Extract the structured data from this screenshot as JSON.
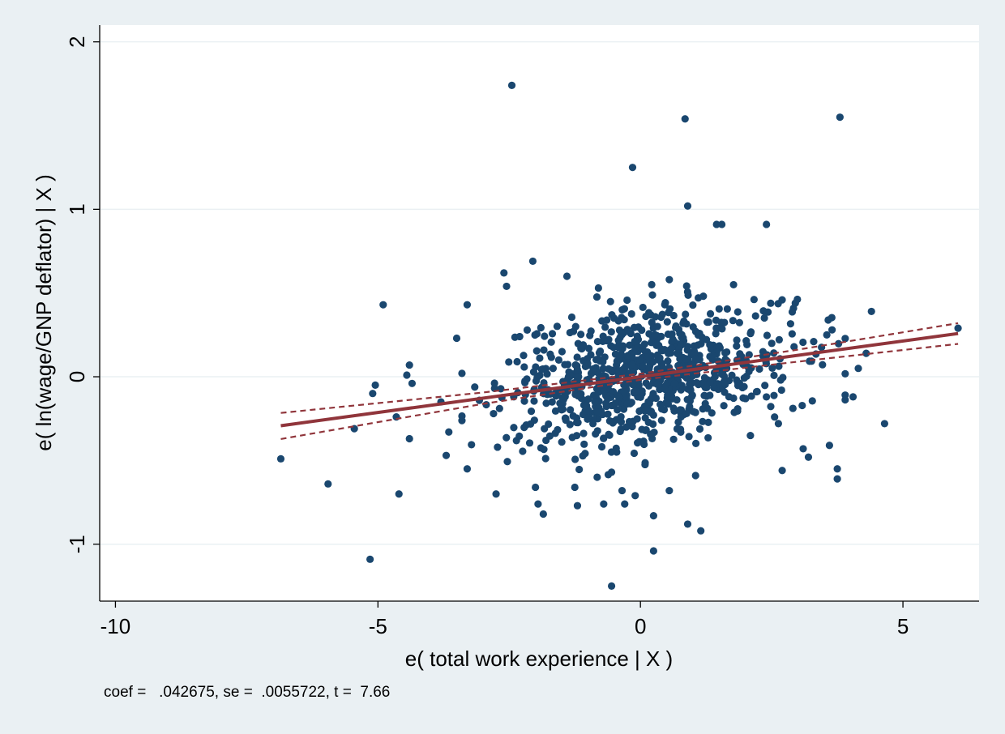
{
  "chart_data": {
    "type": "scatter",
    "title": "",
    "xlabel": "e( total work experience | X )",
    "ylabel": "e( ln(wage/GNP deflator) | X )",
    "note": "coef =   .042675, se =  .0055722, t =  7.66",
    "xlim": [
      -10.3,
      6.45
    ],
    "ylim": [
      -1.34,
      2.1
    ],
    "x_ticks": [
      -10,
      -5,
      0,
      5
    ],
    "x_tick_labels": [
      "-10",
      "-5",
      "0",
      "5"
    ],
    "y_ticks": [
      -1,
      0,
      1,
      2
    ],
    "y_tick_labels": [
      "-1",
      "0",
      "1",
      "2"
    ],
    "grid": "horizontal",
    "legend": "none",
    "colors": {
      "background": "#eaf0f3",
      "plot_background": "#ffffff",
      "points": "#1a476f",
      "fit_line": "#90353b",
      "grid": "#eaf0f3"
    },
    "fit": {
      "slope": 0.042675,
      "x_range": [
        -6.85,
        6.05
      ]
    },
    "ci": {
      "lower": [
        [
          -6.85,
          -0.372
        ],
        [
          -3,
          -0.162
        ],
        [
          0,
          -0.018
        ],
        [
          3,
          0.09
        ],
        [
          6.05,
          0.196
        ]
      ],
      "upper": [
        [
          -6.85,
          -0.216
        ],
        [
          -3,
          -0.094
        ],
        [
          0,
          0.018
        ],
        [
          3,
          0.162
        ],
        [
          6.05,
          0.32
        ]
      ]
    },
    "outliers": [
      [
        -2.45,
        1.74
      ],
      [
        0.85,
        1.54
      ],
      [
        3.8,
        1.55
      ],
      [
        -0.15,
        1.25
      ],
      [
        0.9,
        1.02
      ],
      [
        1.45,
        0.91
      ],
      [
        1.55,
        0.91
      ],
      [
        2.4,
        0.91
      ],
      [
        -2.05,
        0.69
      ],
      [
        -2.6,
        0.62
      ],
      [
        -1.4,
        0.6
      ],
      [
        0.55,
        0.58
      ],
      [
        -2.55,
        0.54
      ],
      [
        -0.8,
        0.53
      ],
      [
        -4.9,
        0.43
      ],
      [
        -3.3,
        0.43
      ],
      [
        4.4,
        0.39
      ],
      [
        6.05,
        0.29
      ],
      [
        -3.5,
        0.23
      ],
      [
        -2.3,
        0.24
      ],
      [
        -6.85,
        -0.49
      ],
      [
        -5.95,
        -0.64
      ],
      [
        -5.45,
        -0.31
      ],
      [
        -5.05,
        -0.05
      ],
      [
        -5.1,
        -0.1
      ],
      [
        -4.4,
        0.07
      ],
      [
        -4.45,
        0.01
      ],
      [
        -4.35,
        -0.04
      ],
      [
        -4.65,
        -0.24
      ],
      [
        -4.6,
        -0.7
      ],
      [
        -4.4,
        -0.37
      ],
      [
        -5.15,
        -1.09
      ],
      [
        -3.8,
        -0.15
      ],
      [
        -3.65,
        -0.33
      ],
      [
        -3.7,
        -0.47
      ],
      [
        -3.4,
        0.02
      ],
      [
        -3.3,
        -0.55
      ],
      [
        -2.75,
        -0.7
      ],
      [
        -2.0,
        -0.66
      ],
      [
        -1.95,
        -0.76
      ],
      [
        -1.85,
        -0.82
      ],
      [
        -1.25,
        -0.66
      ],
      [
        -1.2,
        -0.77
      ],
      [
        -0.7,
        -0.76
      ],
      [
        -0.55,
        -0.57
      ],
      [
        -0.35,
        -0.68
      ],
      [
        -0.3,
        -0.76
      ],
      [
        -0.1,
        -0.71
      ],
      [
        0.25,
        -0.83
      ],
      [
        0.25,
        -1.04
      ],
      [
        -0.55,
        -1.25
      ],
      [
        0.9,
        -0.88
      ],
      [
        1.15,
        -0.92
      ],
      [
        1.05,
        -0.59
      ],
      [
        0.55,
        -0.68
      ],
      [
        2.7,
        -0.56
      ],
      [
        3.1,
        -0.43
      ],
      [
        3.2,
        -0.48
      ],
      [
        3.6,
        -0.41
      ],
      [
        3.75,
        -0.55
      ],
      [
        3.75,
        -0.61
      ],
      [
        4.65,
        -0.28
      ],
      [
        4.05,
        -0.12
      ],
      [
        2.95,
        0.44
      ],
      [
        3.65,
        0.28
      ],
      [
        3.55,
        0.25
      ],
      [
        3.3,
        0.21
      ],
      [
        4.15,
        0.05
      ],
      [
        4.3,
        0.14
      ]
    ],
    "cloud": {
      "count": 840,
      "x_sd": 1.35,
      "y_sd": 0.2,
      "seed": 7
    }
  }
}
